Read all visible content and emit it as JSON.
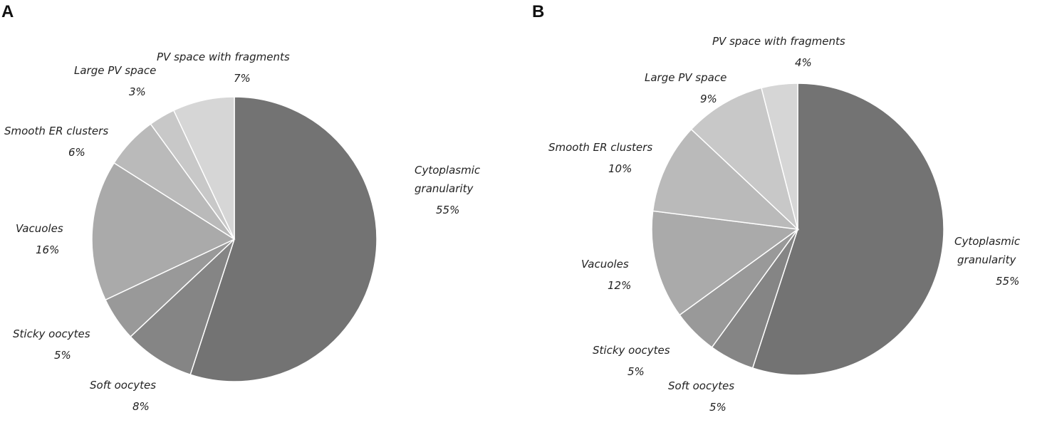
{
  "chart_data": [
    {
      "type": "pie",
      "panel": "A",
      "slices": [
        {
          "label": "Cytoplasmic granularity",
          "value": 55,
          "value_label": "55%",
          "color": "#737373"
        },
        {
          "label": "Soft oocytes",
          "value": 8,
          "value_label": "8%",
          "color": "#858585"
        },
        {
          "label": "Sticky oocytes",
          "value": 5,
          "value_label": "5%",
          "color": "#999999"
        },
        {
          "label": "Vacuoles",
          "value": 16,
          "value_label": "16%",
          "color": "#aaaaaa"
        },
        {
          "label": "Smooth ER clusters",
          "value": 6,
          "value_label": "6%",
          "color": "#bababa"
        },
        {
          "label": "Large PV space",
          "value": 3,
          "value_label": "3%",
          "color": "#c8c8c8"
        },
        {
          "label": "PV space with fragments",
          "value": 7,
          "value_label": "7%",
          "color": "#d6d6d6"
        }
      ]
    },
    {
      "type": "pie",
      "panel": "B",
      "slices": [
        {
          "label": "Cytoplasmic granularity",
          "value": 55,
          "value_label": "55%",
          "color": "#737373"
        },
        {
          "label": "Soft oocytes",
          "value": 5,
          "value_label": "5%",
          "color": "#858585"
        },
        {
          "label": "Sticky oocytes",
          "value": 5,
          "value_label": "5%",
          "color": "#999999"
        },
        {
          "label": "Vacuoles",
          "value": 12,
          "value_label": "12%",
          "color": "#aaaaaa"
        },
        {
          "label": "Smooth ER clusters",
          "value": 10,
          "value_label": "10%",
          "color": "#bababa"
        },
        {
          "label": "Large PV space",
          "value": 9,
          "value_label": "9%",
          "color": "#c8c8c8"
        },
        {
          "label": "PV space with fragments",
          "value": 4,
          "value_label": "4%",
          "color": "#d6d6d6"
        }
      ]
    }
  ]
}
